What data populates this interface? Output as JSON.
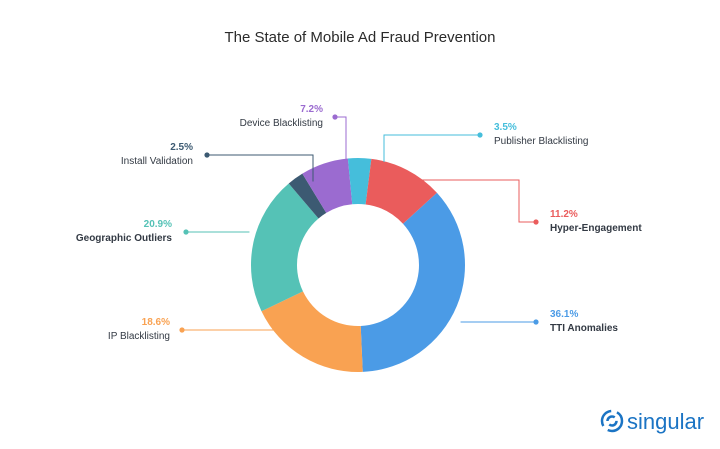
{
  "chart_data": {
    "type": "pie",
    "title": "The State of Mobile Ad Fraud Prevention",
    "slices": [
      {
        "label": "TTI Anomalies",
        "value": 36.1,
        "value_label": "36.1%",
        "color": "#4b9be6",
        "bold": true
      },
      {
        "label": "IP Blacklisting",
        "value": 18.6,
        "value_label": "18.6%",
        "color": "#f9a252",
        "bold": false
      },
      {
        "label": "Geographic Outliers",
        "value": 20.9,
        "value_label": "20.9%",
        "color": "#55c2b6",
        "bold": true
      },
      {
        "label": "Install Validation",
        "value": 2.5,
        "value_label": "2.5%",
        "color": "#3c5a72",
        "bold": false
      },
      {
        "label": "Device Blacklisting",
        "value": 7.2,
        "value_label": "7.2%",
        "color": "#9b6bd0",
        "bold": false
      },
      {
        "label": "Publisher Blacklisting",
        "value": 3.5,
        "value_label": "3.5%",
        "color": "#45bedb",
        "bold": false
      },
      {
        "label": "Hyper-Engagement",
        "value": 11.2,
        "value_label": "11.2%",
        "color": "#ea5c5c",
        "bold": true
      }
    ]
  },
  "brand": {
    "name": "singular",
    "color": "#1b74c4"
  }
}
